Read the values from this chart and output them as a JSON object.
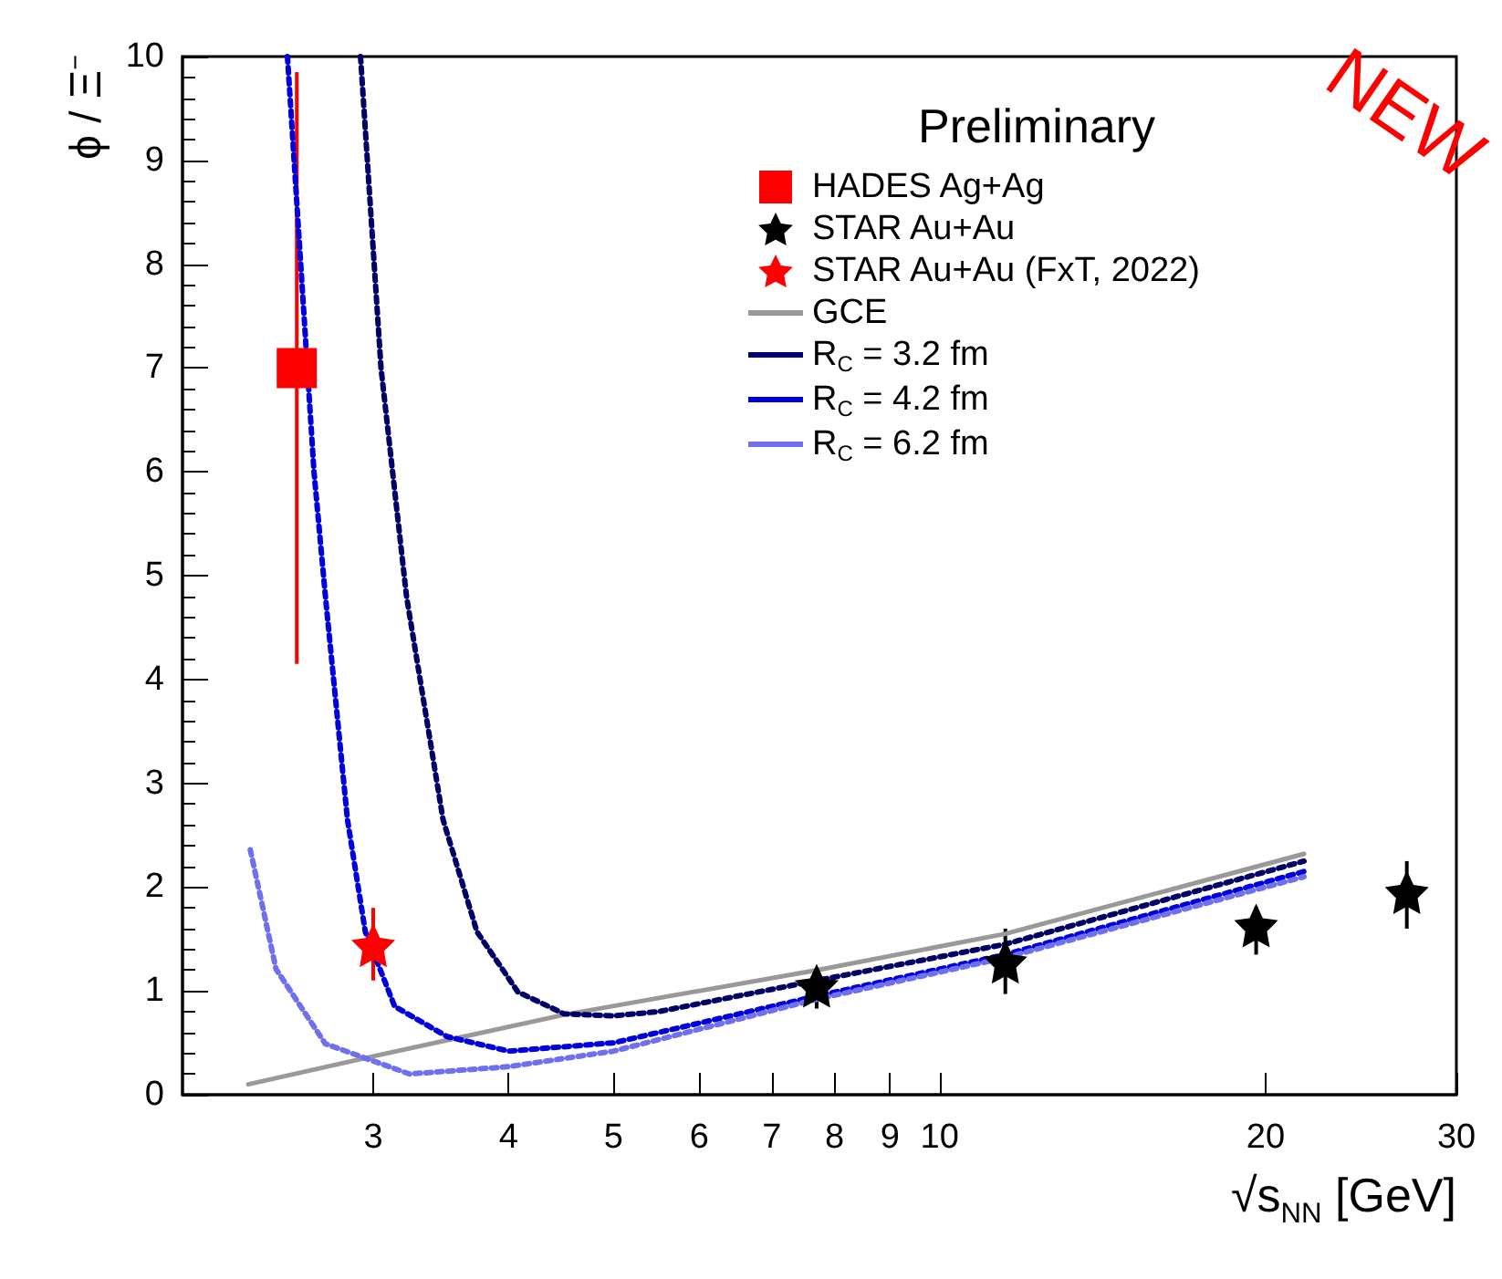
{
  "chart_data": {
    "type": "scatter",
    "xlabel": "√s$_{NN}$ [GeV]",
    "ylabel": "ϕ / Ξ$^{−}$",
    "xlim": [
      2,
      30
    ],
    "xticks": [
      3,
      4,
      5,
      6,
      7,
      8,
      9,
      10,
      20,
      30
    ],
    "log": "x",
    "ylim": [
      0,
      10
    ],
    "yticks": [
      0,
      1,
      2,
      3,
      4,
      5,
      6,
      7,
      8,
      9,
      10
    ],
    "grid": false,
    "legend": "top right",
    "annotations": [
      "Preliminary",
      "NEW"
    ],
    "series": [
      {
        "name": "HADES Ag+Ag",
        "marker": "square",
        "color": "#ff0000",
        "x": [
          2.55
        ],
        "values": [
          7.0
        ],
        "errors": [
          [
            4.15,
            9.85
          ]
        ]
      },
      {
        "name": "STAR Au+Au",
        "marker": "star",
        "color": "#000000",
        "x": [
          7.7,
          11.5,
          19.6,
          27
        ],
        "values": [
          1.05,
          1.28,
          1.63,
          1.95
        ],
        "errors": [
          [
            0.83,
            1.19
          ],
          [
            0.97,
            1.6
          ],
          [
            1.35,
            1.81
          ],
          [
            1.6,
            2.25
          ]
        ]
      },
      {
        "name": "STAR Au+Au (FxT, 2022)",
        "marker": "star",
        "color": "#ff0000",
        "x": [
          3.0
        ],
        "values": [
          1.44
        ],
        "errors": [
          [
            1.1,
            1.8
          ]
        ]
      },
      {
        "name": "GCE",
        "type": "line",
        "line_style": "solid",
        "color": "#999999",
        "x": [
          2.3,
          3,
          4.5,
          7.7,
          11.5,
          21.7
        ],
        "values": [
          0.1,
          0.37,
          0.77,
          1.2,
          1.55,
          2.32
        ]
      },
      {
        "name": "R$_{C}$ = 3.2 fm",
        "type": "line",
        "line_style": "dotted",
        "color": "#000066",
        "x": [
          2.92,
          3.05,
          3.22,
          3.48,
          3.74,
          4.08,
          4.5,
          5.0,
          5.5,
          7.7,
          11.5,
          21.7
        ],
        "values": [
          10,
          7.0,
          4.8,
          2.65,
          1.57,
          0.99,
          0.78,
          0.76,
          0.8,
          1.1,
          1.45,
          2.25
        ]
      },
      {
        "name": "R$_{C}$ = 4.2 fm",
        "type": "line",
        "line_style": "dotted",
        "color": "#0000dd",
        "x": [
          2.5,
          2.645,
          2.71,
          2.84,
          2.95,
          3.14,
          3.51,
          4.0,
          5.0,
          7.7,
          11.5,
          21.7
        ],
        "values": [
          10,
          6.0,
          4.8,
          2.65,
          1.57,
          0.85,
          0.56,
          0.42,
          0.5,
          0.95,
          1.35,
          2.15
        ]
      },
      {
        "name": "R$_{C}$ = 6.2 fm",
        "type": "line",
        "line_style": "dotted",
        "color": "#7070ee",
        "x": [
          2.31,
          2.44,
          2.71,
          3.24,
          4.0,
          5.0,
          7.7,
          11.5,
          21.7
        ],
        "values": [
          2.36,
          1.21,
          0.49,
          0.2,
          0.27,
          0.42,
          0.92,
          1.32,
          2.1
        ]
      }
    ]
  }
}
